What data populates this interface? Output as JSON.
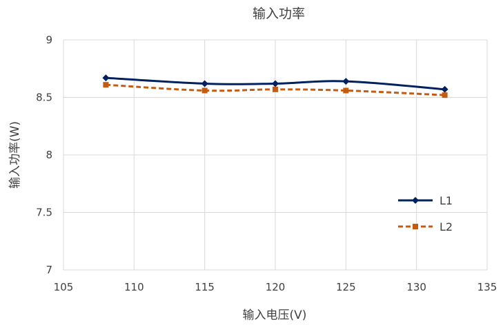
{
  "chart_data": {
    "type": "line",
    "title": "输入功率",
    "xlabel": "输入电压(V)",
    "ylabel": "输入功率(W)",
    "xlim": [
      105,
      135
    ],
    "ylim": [
      7,
      9
    ],
    "x_ticks": [
      "105",
      "110",
      "115",
      "120",
      "125",
      "130",
      "135"
    ],
    "y_ticks": [
      "7",
      "7.5",
      "8",
      "8.5",
      "9"
    ],
    "grid": true,
    "legend_position": "right",
    "x": [
      108,
      115,
      120,
      125,
      132
    ],
    "series": [
      {
        "name": "L1",
        "values": [
          8.67,
          8.62,
          8.62,
          8.64,
          8.57
        ],
        "color": "#002060",
        "marker": "diamond",
        "line_style": "solid"
      },
      {
        "name": "L2",
        "values": [
          8.61,
          8.56,
          8.57,
          8.56,
          8.52
        ],
        "color": "#c55a11",
        "marker": "square",
        "line_style": "dashed"
      }
    ]
  }
}
